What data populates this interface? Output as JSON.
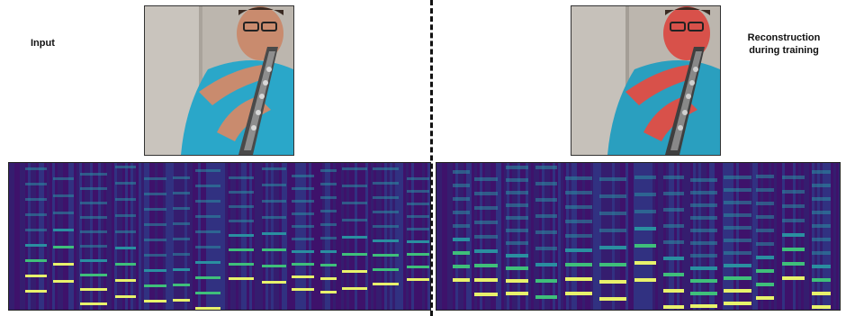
{
  "labels": {
    "input": "Input",
    "reconstruction_line1": "Reconstruction",
    "reconstruction_line2": "during training"
  },
  "colors": {
    "spectrogram_bg": "#3b0f6f",
    "harmonic_bright": "#e8f26b",
    "harmonic_mid": "#3fbf7a",
    "harmonic_low": "#2a8fa0",
    "divider": "#111111",
    "shirt": "#2aa7c9",
    "wall": "#b9b3ab",
    "skin": "#c98b6e",
    "reconstruction_skin_tint": "#d8514a"
  }
}
